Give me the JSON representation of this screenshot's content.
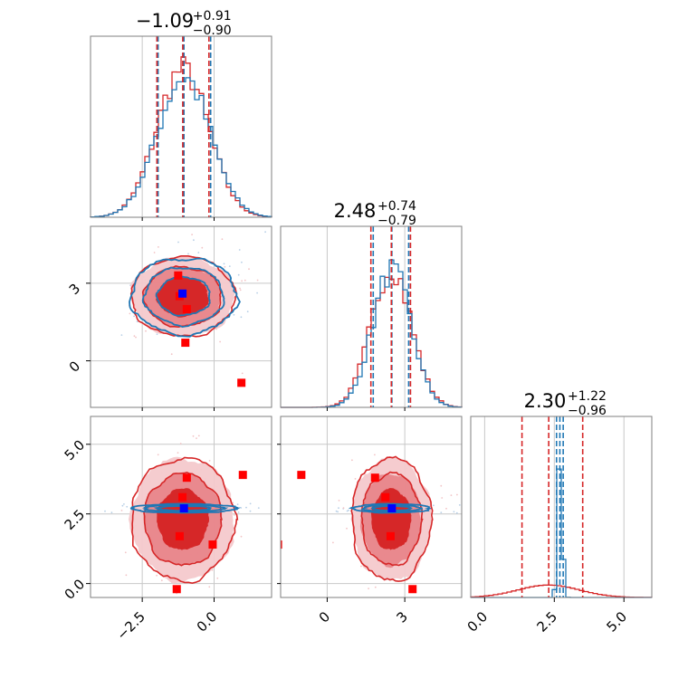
{
  "chart_data": {
    "type": "corner",
    "colors": {
      "red": "#d62728",
      "blue": "#1f77b4",
      "truth_red": "#ff0000",
      "truth_blue": "#0000ff",
      "grid": "#c8c8c8",
      "fill_inner": "#d62728",
      "fill_mid": "#e8858a",
      "fill_outer": "#f4c9cc"
    },
    "parameters": [
      {
        "id": "p0",
        "title_main": "−1.09",
        "title_sup": "+0.91",
        "title_sub": "−0.90",
        "range": [
          -4.3,
          2.0
        ],
        "ticks": [
          -2.5,
          0.0
        ],
        "tick_labels": [
          "−2.5",
          "0.0"
        ]
      },
      {
        "id": "p1",
        "title_main": "2.48",
        "title_sup": "+0.74",
        "title_sub": "−0.79",
        "range": [
          -1.8,
          5.2
        ],
        "ticks": [
          0,
          3
        ],
        "tick_labels": [
          "0",
          "3"
        ]
      },
      {
        "id": "p2",
        "title_main": "2.30",
        "title_sup": "+1.22",
        "title_sub": "−0.96",
        "range": [
          -0.5,
          6.0
        ],
        "ticks": [
          0.0,
          2.5,
          5.0
        ],
        "tick_labels": [
          "0.0",
          "2.5",
          "5.0"
        ]
      }
    ],
    "marginals": [
      {
        "param": 0,
        "quantiles_red": [
          -1.99,
          -1.09,
          -0.18
        ],
        "quantiles_blue": [
          -1.95,
          -1.05,
          -0.12
        ],
        "series": [
          {
            "name": "",
            "color": "red",
            "mean": -1.09,
            "sd": 0.9,
            "peak": 0.95
          },
          {
            "name": "",
            "color": "blue",
            "mean": -1.05,
            "sd": 0.92,
            "peak": 0.9
          }
        ]
      },
      {
        "param": 1,
        "quantiles_red": [
          1.69,
          2.48,
          3.22
        ],
        "quantiles_blue": [
          1.78,
          2.5,
          3.15
        ],
        "series": [
          {
            "name": "",
            "color": "red",
            "mean": 2.48,
            "sd": 0.77,
            "peak": 0.9
          },
          {
            "name": "",
            "color": "blue",
            "mean": 2.5,
            "sd": 0.74,
            "peak": 0.88
          }
        ]
      },
      {
        "param": 2,
        "quantiles_red": [
          1.34,
          2.3,
          3.52
        ],
        "quantiles_blue": [
          2.58,
          2.7,
          2.82
        ],
        "series": [
          {
            "name": "",
            "color": "red",
            "mean": 2.3,
            "sd": 1.1,
            "peak": 0.08
          },
          {
            "name": "",
            "color": "blue",
            "mean": 2.7,
            "sd": 0.08,
            "peak": 0.95
          }
        ]
      }
    ],
    "joints": [
      {
        "x": 0,
        "y": 1,
        "red": {
          "mx": -1.09,
          "my": 2.48,
          "sx": 0.9,
          "sy": 0.77
        },
        "blue": {
          "mx": -1.05,
          "my": 2.5,
          "sx": 0.92,
          "sy": 0.74
        },
        "truths_red": [
          [
            -1.25,
            3.3
          ],
          [
            -1.2,
            2.5
          ],
          [
            -0.95,
            2.0
          ],
          [
            -1.0,
            0.7
          ],
          [
            0.95,
            -0.85
          ]
        ],
        "truth_blue": [
          -1.1,
          2.6
        ]
      },
      {
        "x": 0,
        "y": 2,
        "red": {
          "mx": -1.09,
          "my": 2.3,
          "sx": 0.9,
          "sy": 1.1
        },
        "blue": {
          "mx": -1.05,
          "my": 2.7,
          "sx": 0.92,
          "sy": 0.08
        },
        "truths_red": [
          [
            -0.95,
            3.8
          ],
          [
            1.0,
            3.9
          ],
          [
            -1.1,
            3.1
          ],
          [
            -1.2,
            1.7
          ],
          [
            -0.05,
            1.4
          ],
          [
            -1.3,
            -0.2
          ]
        ],
        "truth_blue": [
          -1.05,
          2.7
        ]
      },
      {
        "x": 1,
        "y": 2,
        "red": {
          "mx": 2.48,
          "my": 2.3,
          "sx": 0.77,
          "sy": 1.1
        },
        "blue": {
          "mx": 2.5,
          "my": 2.7,
          "sx": 0.74,
          "sy": 0.08
        },
        "truths_red": [
          [
            -1.0,
            3.9
          ],
          [
            1.85,
            3.8
          ],
          [
            2.25,
            3.1
          ],
          [
            2.45,
            1.7
          ],
          [
            3.3,
            -0.2
          ],
          [
            -1.9,
            1.4
          ]
        ],
        "truth_blue": [
          2.5,
          2.7
        ]
      }
    ]
  }
}
